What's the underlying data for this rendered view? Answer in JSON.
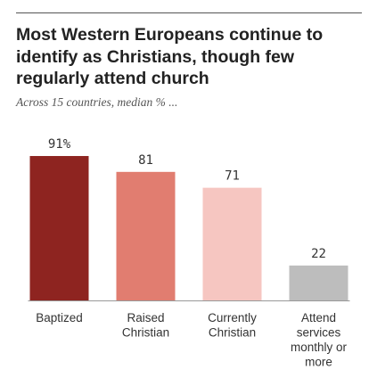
{
  "title": "Most Western Europeans continue to identify as Christians, though few regularly attend church",
  "subtitle": "Across 15 countries, median % ...",
  "chart_data": {
    "type": "bar",
    "title": "Most Western Europeans continue to identify as Christians, though few regularly attend church",
    "subtitle": "Across 15 countries, median % ...",
    "categories": [
      [
        "Baptized"
      ],
      [
        "Raised",
        "Christian"
      ],
      [
        "Currently",
        "Christian"
      ],
      [
        "Attend",
        "services",
        "monthly or",
        "more"
      ]
    ],
    "values": [
      91,
      81,
      71,
      22
    ],
    "value_labels": [
      "91%",
      "81",
      "71",
      "22"
    ],
    "colors": [
      "#8e2420",
      "#e17d70",
      "#f6c6c1",
      "#bdbdbd"
    ],
    "ylim": [
      0,
      100
    ],
    "grid": false,
    "legend": "none"
  }
}
